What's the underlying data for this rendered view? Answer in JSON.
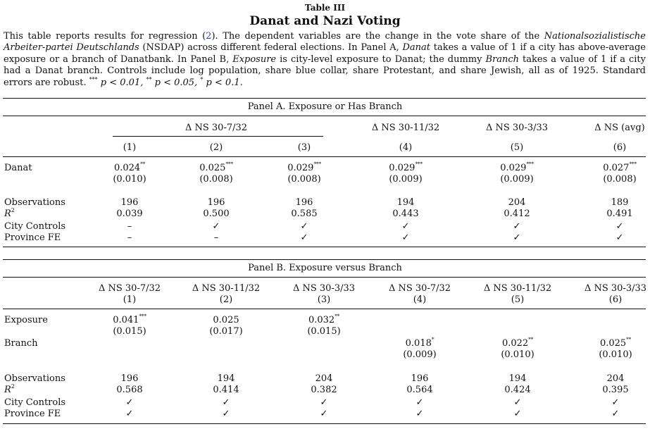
{
  "table": {
    "label": "Table III",
    "title": "Danat and Nazi Voting",
    "caption": {
      "p1": "This table reports results for regression (",
      "ref": "2",
      "p2": "). The dependent variables are the change in the vote share of the ",
      "party": "Nationalsozialistische Arbeiter-partei Deutschlands",
      "p3": " (NSDAP) across different federal elections. In Panel A, ",
      "danat": "Danat",
      "p4": " takes a value of 1 if a city has above-average exposure or a branch of Danatbank. In Panel B, ",
      "exposure": "Exposure",
      "p5": " is city-level exposure to Danat; the dummy ",
      "branch": "Branch",
      "p6": " takes a value of 1 if a city had a Danat branch. Controls include log population, share blue collar, share Protestant, and share Jewish, all as of 1925. Standard errors are robust. ",
      "s1": "***",
      "p7": " p < 0.01, ",
      "s2": "**",
      "p8": " p < 0.05, ",
      "s3": "*",
      "p9": " p < 0.1."
    }
  },
  "panel_a": {
    "title": "Panel A. Exposure or Has Branch",
    "group_header": "Δ NS 30-7/32",
    "col_headers": [
      "Δ NS 30-11/32",
      "Δ NS 30-3/33",
      "Δ NS (avg)"
    ],
    "col_numbers": [
      "(1)",
      "(2)",
      "(3)",
      "(4)",
      "(5)",
      "(6)"
    ],
    "danat_label": "Danat",
    "danat_coef": [
      "0.024",
      "0.025",
      "0.029",
      "0.029",
      "0.029",
      "0.027"
    ],
    "danat_stars": [
      "**",
      "***",
      "***",
      "***",
      "***",
      "***"
    ],
    "danat_se": [
      "(0.010)",
      "(0.008)",
      "(0.008)",
      "(0.009)",
      "(0.009)",
      "(0.008)"
    ],
    "obs_label": "Observations",
    "obs": [
      "196",
      "196",
      "196",
      "194",
      "204",
      "189"
    ],
    "r2_label": "R",
    "r2_sup": "2",
    "r2": [
      "0.039",
      "0.500",
      "0.585",
      "0.443",
      "0.412",
      "0.491"
    ],
    "controls_label": "City Controls",
    "controls": [
      "–",
      "✓",
      "✓",
      "✓",
      "✓",
      "✓"
    ],
    "fe_label": "Province FE",
    "fe": [
      "–",
      "–",
      "✓",
      "✓",
      "✓",
      "✓"
    ]
  },
  "panel_b": {
    "title": "Panel B. Exposure versus Branch",
    "col_headers": [
      "Δ NS 30-7/32",
      "Δ NS 30-11/32",
      "Δ NS 30-3/33",
      "Δ NS 30-7/32",
      "Δ NS 30-11/32",
      "Δ NS 30-3/33"
    ],
    "col_numbers": [
      "(1)",
      "(2)",
      "(3)",
      "(4)",
      "(5)",
      "(6)"
    ],
    "exposure_label": "Exposure",
    "exposure_coef": [
      "0.041",
      "0.025",
      "0.032"
    ],
    "exposure_stars": [
      "***",
      "",
      "**"
    ],
    "exposure_se": [
      "(0.015)",
      "(0.017)",
      "(0.015)"
    ],
    "branch_label": "Branch",
    "branch_coef": [
      "0.018",
      "0.022",
      "0.025"
    ],
    "branch_stars": [
      "*",
      "**",
      "**"
    ],
    "branch_se": [
      "(0.009)",
      "(0.010)",
      "(0.010)"
    ],
    "obs_label": "Observations",
    "obs": [
      "196",
      "194",
      "204",
      "196",
      "194",
      "204"
    ],
    "r2_label": "R",
    "r2_sup": "2",
    "r2": [
      "0.568",
      "0.414",
      "0.382",
      "0.564",
      "0.424",
      "0.395"
    ],
    "controls_label": "City Controls",
    "controls": [
      "✓",
      "✓",
      "✓",
      "✓",
      "✓",
      "✓"
    ],
    "fe_label": "Province FE",
    "fe": [
      "✓",
      "✓",
      "✓",
      "✓",
      "✓",
      "✓"
    ]
  }
}
